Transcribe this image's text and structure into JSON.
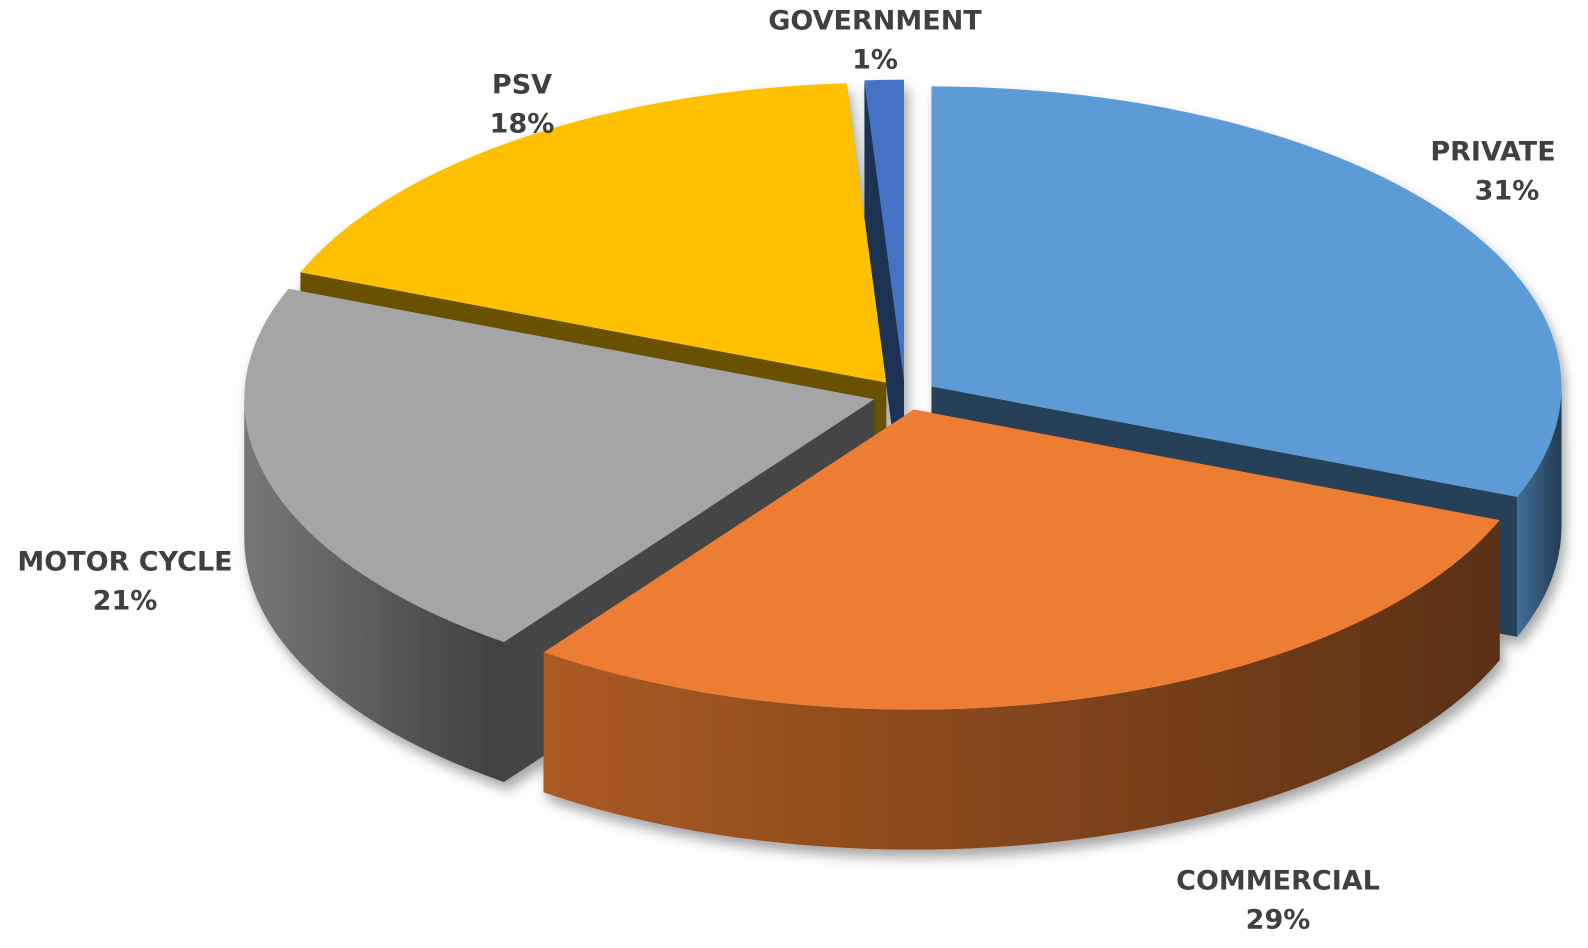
{
  "chart_data": {
    "type": "pie",
    "3d": true,
    "exploded": true,
    "categories": [
      "PRIVATE",
      "COMMERCIAL",
      "MOTOR CYCLE",
      "PSV",
      "GOVERNMENT"
    ],
    "values": [
      31,
      29,
      21,
      18,
      1
    ],
    "value_labels": [
      "31%",
      "29%",
      "21%",
      "18%",
      "1%"
    ],
    "colors": [
      "#5b9bd5",
      "#ed7d31",
      "#a5a5a5",
      "#ffc000",
      "#4472c4"
    ]
  }
}
